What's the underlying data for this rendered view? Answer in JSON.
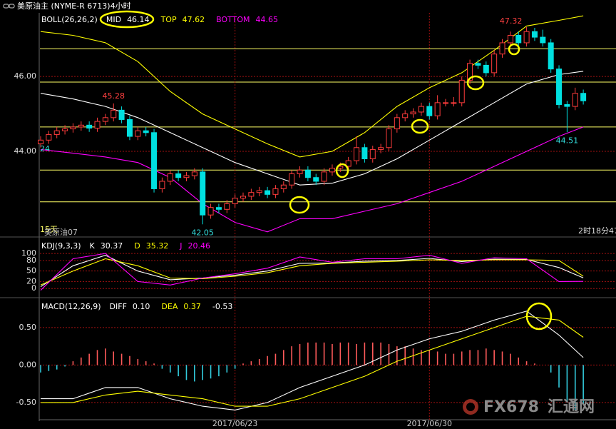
{
  "chart_data": [
    {
      "type": "candlestick",
      "title": "美原油主 (NYME-R 6713)4小时",
      "indicator": "BOLL(26,26,2)",
      "categories": [
        null,
        null,
        null,
        null,
        null,
        null,
        null,
        null,
        null,
        null,
        null,
        null,
        null,
        null,
        null,
        null,
        null,
        null,
        null,
        null,
        null,
        null,
        null,
        null,
        "2017/06/23",
        null,
        null,
        null,
        null,
        null,
        null,
        null,
        null,
        null,
        null,
        null,
        null,
        null,
        null,
        null,
        null,
        null,
        null,
        null,
        null,
        null,
        null,
        null,
        "2017/06/30",
        null,
        null,
        null,
        null,
        null,
        null,
        null,
        null,
        null,
        null,
        null,
        null,
        null,
        null,
        null,
        null,
        null,
        null,
        null
      ],
      "open": [
        44.2,
        44.3,
        44.45,
        44.55,
        44.6,
        44.65,
        44.7,
        44.62,
        44.8,
        44.9,
        45.1,
        44.85,
        44.4,
        44.55,
        44.5,
        43.0,
        43.2,
        43.4,
        43.3,
        43.35,
        43.45,
        42.3,
        42.5,
        42.45,
        42.6,
        42.75,
        42.8,
        42.9,
        42.95,
        42.85,
        43.0,
        43.1,
        43.4,
        43.5,
        43.3,
        43.2,
        43.45,
        43.55,
        43.6,
        43.75,
        44.1,
        43.8,
        44.05,
        44.1,
        44.6,
        44.9,
        45.0,
        45.05,
        45.2,
        44.95,
        45.3,
        45.3,
        45.3,
        45.9,
        46.35,
        46.3,
        46.1,
        46.6,
        46.9,
        47.1,
        46.9,
        47.2,
        47.05,
        46.9,
        46.2,
        45.25,
        45.2,
        45.55
      ],
      "high": [
        44.4,
        44.55,
        44.65,
        44.7,
        44.75,
        44.8,
        44.8,
        44.9,
        45.0,
        45.28,
        45.2,
        44.95,
        44.65,
        44.65,
        44.6,
        43.3,
        43.5,
        43.5,
        43.45,
        43.55,
        43.55,
        42.6,
        42.6,
        42.7,
        42.85,
        42.9,
        43.0,
        43.05,
        43.05,
        43.1,
        43.2,
        43.5,
        43.6,
        43.6,
        43.4,
        43.55,
        43.65,
        43.7,
        43.85,
        44.4,
        44.2,
        44.15,
        44.2,
        44.7,
        45.0,
        45.1,
        45.15,
        45.3,
        45.3,
        45.5,
        45.4,
        45.45,
        46.0,
        46.45,
        46.45,
        46.4,
        46.7,
        47.0,
        47.2,
        47.2,
        47.32,
        47.3,
        47.25,
        47.0,
        46.3,
        45.35,
        45.7,
        45.65
      ],
      "low": [
        44.1,
        44.2,
        44.35,
        44.45,
        44.5,
        44.55,
        44.52,
        44.52,
        44.7,
        44.8,
        44.75,
        44.3,
        44.3,
        44.4,
        42.9,
        42.9,
        43.1,
        43.2,
        43.2,
        43.25,
        42.05,
        42.2,
        42.35,
        42.35,
        42.5,
        42.65,
        42.7,
        42.8,
        42.75,
        42.75,
        42.9,
        43.0,
        43.3,
        43.2,
        43.1,
        43.1,
        43.35,
        43.45,
        43.5,
        43.65,
        43.7,
        43.7,
        43.95,
        44.0,
        44.5,
        44.8,
        44.9,
        44.95,
        44.85,
        44.85,
        45.2,
        45.2,
        45.2,
        45.8,
        46.2,
        46.0,
        46.0,
        46.5,
        46.8,
        46.8,
        46.8,
        46.95,
        46.8,
        46.1,
        45.15,
        44.51,
        45.1,
        45.25
      ],
      "close": [
        44.3,
        44.45,
        44.55,
        44.6,
        44.65,
        44.7,
        44.62,
        44.8,
        44.9,
        45.1,
        44.85,
        44.4,
        44.55,
        44.5,
        43.0,
        43.2,
        43.4,
        43.3,
        43.35,
        43.45,
        42.3,
        42.5,
        42.45,
        42.6,
        42.75,
        42.8,
        42.9,
        42.95,
        42.85,
        43.0,
        43.1,
        43.4,
        43.5,
        43.3,
        43.2,
        43.45,
        43.55,
        43.6,
        43.75,
        44.1,
        43.8,
        44.05,
        44.1,
        44.6,
        44.9,
        45.0,
        45.05,
        45.2,
        44.95,
        45.3,
        45.3,
        45.3,
        45.9,
        46.35,
        46.3,
        46.1,
        46.6,
        46.9,
        47.1,
        46.9,
        47.2,
        47.05,
        46.9,
        46.2,
        45.25,
        45.2,
        45.55,
        45.35
      ],
      "up_color": "#ff3c3c",
      "down_color": "#00e0e0",
      "series": [
        {
          "name": "MID",
          "value": 46.14,
          "color": "#ffffff",
          "x": [
            0,
            4,
            8,
            12,
            16,
            20,
            24,
            28,
            32,
            36,
            40,
            44,
            48,
            52,
            56,
            60,
            64,
            67
          ],
          "values": [
            45.55,
            45.4,
            45.2,
            44.9,
            44.5,
            44.1,
            43.7,
            43.4,
            43.1,
            43.15,
            43.4,
            43.8,
            44.3,
            44.8,
            45.3,
            45.8,
            46.05,
            46.14
          ]
        },
        {
          "name": "TOP",
          "value": 47.62,
          "color": "#ffff00",
          "x": [
            0,
            4,
            8,
            12,
            16,
            20,
            24,
            28,
            32,
            36,
            40,
            44,
            48,
            52,
            56,
            60,
            64,
            67
          ],
          "values": [
            47.2,
            47.1,
            46.9,
            46.4,
            45.6,
            45.0,
            44.6,
            44.2,
            43.85,
            44.0,
            44.5,
            45.2,
            45.7,
            46.1,
            46.7,
            47.35,
            47.5,
            47.62
          ]
        },
        {
          "name": "BOTTOM",
          "value": 44.65,
          "color": "#ff00ff",
          "x": [
            0,
            4,
            8,
            12,
            16,
            20,
            24,
            28,
            32,
            36,
            40,
            44,
            48,
            52,
            56,
            60,
            64,
            67
          ],
          "values": [
            44.05,
            43.95,
            43.85,
            43.7,
            43.3,
            42.6,
            42.1,
            41.85,
            42.2,
            42.2,
            42.4,
            42.6,
            42.9,
            43.2,
            43.6,
            44.0,
            44.4,
            44.65
          ]
        }
      ],
      "reference_lines": {
        "color": "#ffff66",
        "values": [
          46.74,
          45.85,
          44.65,
          43.5,
          42.65
        ]
      },
      "annotations": [
        "24",
        "15天",
        "美原油07",
        "2时18分47"
      ],
      "ylim": [
        41.75,
        47.7
      ],
      "yticks": [
        {
          "value": 44,
          "label": "44.00"
        },
        {
          "value": 46,
          "label": "46.00"
        }
      ],
      "grid": true
    },
    {
      "type": "line",
      "title": "KDJ(9,3,3)",
      "series": [
        {
          "name": "K",
          "value": 30.37,
          "color": "#ffffff",
          "x": [
            0,
            4,
            8,
            12,
            16,
            20,
            24,
            28,
            32,
            36,
            40,
            44,
            48,
            52,
            56,
            60,
            64,
            67
          ],
          "values": [
            5,
            65,
            95,
            50,
            25,
            30,
            38,
            50,
            72,
            73,
            78,
            80,
            86,
            77,
            84,
            83,
            60,
            30.37
          ]
        },
        {
          "name": "D",
          "value": 35.32,
          "color": "#ffff00",
          "x": [
            0,
            4,
            8,
            12,
            16,
            20,
            24,
            28,
            32,
            36,
            40,
            44,
            48,
            52,
            56,
            60,
            64,
            67
          ],
          "values": [
            10,
            50,
            85,
            65,
            30,
            28,
            35,
            45,
            65,
            72,
            75,
            78,
            82,
            80,
            82,
            82,
            80,
            35.32
          ]
        },
        {
          "name": "J",
          "value": 20.46,
          "color": "#ff00ff",
          "x": [
            0,
            4,
            8,
            12,
            16,
            20,
            24,
            28,
            32,
            36,
            40,
            44,
            48,
            52,
            56,
            60,
            64,
            67
          ],
          "values": [
            -5,
            85,
            100,
            20,
            10,
            30,
            42,
            58,
            90,
            75,
            85,
            85,
            95,
            72,
            88,
            85,
            20,
            20.46
          ]
        }
      ],
      "ylim": [
        -22,
        141
      ],
      "yticks": [
        0,
        20,
        50,
        80,
        100
      ],
      "grid": true
    },
    {
      "type": "macd",
      "title": "MACD(12,26,9)",
      "series": [
        {
          "name": "DIFF",
          "value": 0.1,
          "value_label": "0.10",
          "color": "#ffffff",
          "x": [
            0,
            4,
            8,
            12,
            16,
            20,
            24,
            28,
            32,
            36,
            40,
            44,
            48,
            52,
            56,
            60,
            64,
            67
          ],
          "values": [
            -0.45,
            -0.45,
            -0.3,
            -0.3,
            -0.45,
            -0.55,
            -0.6,
            -0.5,
            -0.3,
            -0.15,
            0,
            0.2,
            0.35,
            0.45,
            0.6,
            0.72,
            0.4,
            0.1
          ]
        },
        {
          "name": "DEA",
          "value": 0.37,
          "color": "#ffff00",
          "x": [
            0,
            4,
            8,
            12,
            16,
            20,
            24,
            28,
            32,
            36,
            40,
            44,
            48,
            52,
            56,
            60,
            64,
            67
          ],
          "values": [
            -0.5,
            -0.5,
            -0.4,
            -0.35,
            -0.4,
            -0.45,
            -0.55,
            -0.55,
            -0.45,
            -0.3,
            -0.15,
            0.05,
            0.2,
            0.35,
            0.5,
            0.65,
            0.6,
            0.37
          ]
        }
      ],
      "histogram": {
        "value": -0.53,
        "up_color": "#ff5a5a",
        "down_color": "#33ccdd",
        "values": [
          -0.1,
          -0.08,
          -0.06,
          -0.02,
          0.05,
          0.1,
          0.15,
          0.2,
          0.22,
          0.18,
          0.15,
          0.12,
          0.08,
          0.05,
          0.02,
          -0.05,
          -0.1,
          -0.15,
          -0.2,
          -0.22,
          -0.2,
          -0.18,
          -0.15,
          -0.1,
          -0.05,
          0.02,
          0.05,
          0.08,
          0.12,
          0.15,
          0.2,
          0.25,
          0.28,
          0.3,
          0.3,
          0.3,
          0.28,
          0.3,
          0.3,
          0.28,
          0.3,
          0.3,
          0.3,
          0.28,
          0.25,
          0.25,
          0.22,
          0.2,
          0.2,
          0.18,
          0.15,
          0.15,
          0.18,
          0.2,
          0.2,
          0.22,
          0.2,
          0.18,
          0.15,
          0.1,
          0.05,
          0.02,
          0,
          -0.1,
          -0.3,
          -0.5,
          -0.6,
          -0.53
        ]
      },
      "ylim": [
        -0.73,
        0.87
      ],
      "yticks": [
        {
          "value": -0.5,
          "label": "-0.50"
        },
        {
          "value": 0,
          "label": "0.00"
        },
        {
          "value": 0.5,
          "label": "0.50"
        }
      ],
      "grid": true
    }
  ],
  "watermark": {
    "brand": "FX678",
    "name": "汇通网"
  }
}
